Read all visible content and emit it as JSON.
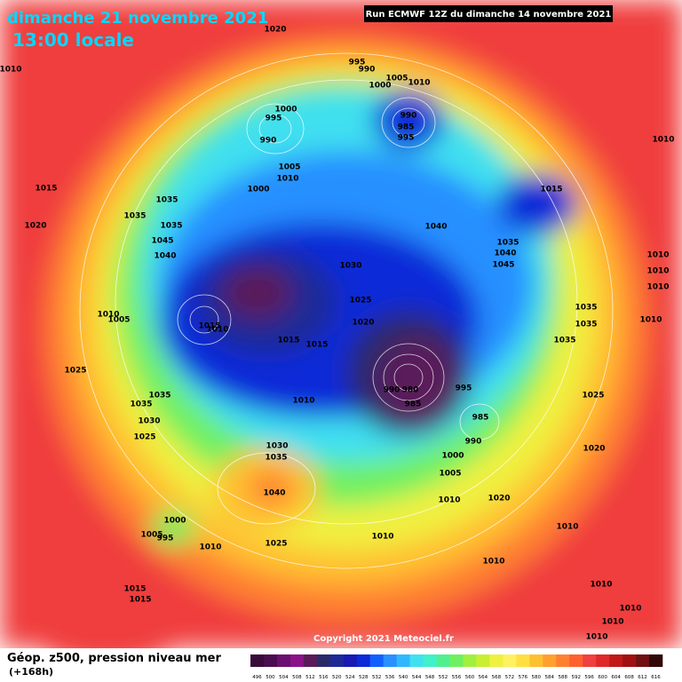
{
  "header": {
    "date": "dimanche 21 novembre 2021",
    "time": "13:00 locale",
    "run": "Run ECMWF 12Z du dimanche 14 novembre 2021"
  },
  "copyright": "Copyright 2021 Meteociel.fr",
  "legend": {
    "title": "Géop. z500, pression niveau mer",
    "subtitle": "(+168h)",
    "levels": [
      496,
      500,
      504,
      508,
      512,
      516,
      520,
      524,
      528,
      532,
      536,
      540,
      544,
      548,
      552,
      556,
      560,
      564,
      568,
      572,
      576,
      580,
      584,
      588,
      592,
      596,
      600,
      604,
      608,
      612,
      616
    ],
    "colors": [
      "#3a0a3a",
      "#4a0d4f",
      "#6a1070",
      "#8a128a",
      "#5a1a5a",
      "#2a2a6a",
      "#1e2a96",
      "#1a1ab4",
      "#0d2ad8",
      "#1060ff",
      "#2890ff",
      "#30b8ff",
      "#40e0f0",
      "#40f0c8",
      "#50f090",
      "#70f060",
      "#a0f040",
      "#c8f030",
      "#f0f040",
      "#fff060",
      "#ffe040",
      "#ffc030",
      "#ffa030",
      "#ff8030",
      "#ff6030",
      "#f04040",
      "#e02828",
      "#c01818",
      "#a01010",
      "#701010",
      "#300808"
    ]
  },
  "isobar_labels": [
    1020,
    1010,
    995,
    990,
    1000,
    1005,
    1010,
    1000,
    995,
    990,
    990,
    985,
    995,
    1005,
    1010,
    1000,
    1015,
    1035,
    1035,
    1020,
    1035,
    1045,
    1040,
    1040,
    1015,
    1010,
    1035,
    1040,
    1045,
    1030,
    1010,
    1010,
    1010,
    1025,
    1020,
    1010,
    1005,
    1015,
    1010,
    1015,
    1015,
    1035,
    1035,
    1010,
    1035,
    1025,
    1035,
    990,
    980,
    985,
    995,
    1035,
    1030,
    1010,
    1025,
    985,
    990,
    1025,
    1030,
    1035,
    1000,
    1020,
    1005,
    1040,
    1010,
    1020,
    1000,
    1005,
    995,
    1010,
    1025,
    1010,
    1010,
    1010,
    1015,
    1015,
    1010,
    1010,
    1010,
    1010
  ]
}
